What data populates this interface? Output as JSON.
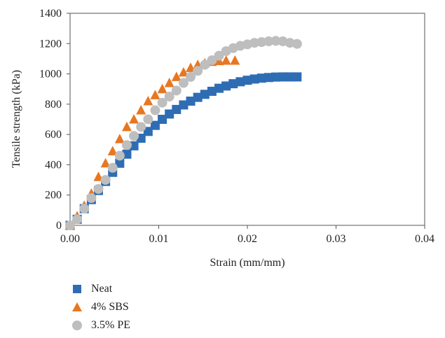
{
  "chart_data": {
    "type": "scatter",
    "title": "",
    "xlabel": "Strain (mm/mm)",
    "ylabel": "Tensile strength (kPa)",
    "xlim": [
      0,
      0.04
    ],
    "ylim": [
      0,
      1400
    ],
    "x_ticks": [
      "0.00",
      "0.01",
      "0.02",
      "0.03",
      "0.04"
    ],
    "y_ticks": [
      "0",
      "200",
      "400",
      "600",
      "800",
      "1000",
      "1200",
      "1400"
    ],
    "grid": false,
    "legend_position": "bottom-left",
    "series": [
      {
        "name": "Neat",
        "marker": "square",
        "color": "#2E6DB4",
        "points": [
          [
            0.0,
            0
          ],
          [
            0.0008,
            40
          ],
          [
            0.0016,
            110
          ],
          [
            0.0024,
            170
          ],
          [
            0.0032,
            230
          ],
          [
            0.004,
            290
          ],
          [
            0.0048,
            350
          ],
          [
            0.0056,
            410
          ],
          [
            0.0064,
            470
          ],
          [
            0.0072,
            525
          ],
          [
            0.008,
            575
          ],
          [
            0.0088,
            620
          ],
          [
            0.0096,
            660
          ],
          [
            0.0104,
            700
          ],
          [
            0.0112,
            735
          ],
          [
            0.012,
            765
          ],
          [
            0.0128,
            795
          ],
          [
            0.0136,
            820
          ],
          [
            0.0144,
            845
          ],
          [
            0.0152,
            865
          ],
          [
            0.016,
            885
          ],
          [
            0.0168,
            905
          ],
          [
            0.0176,
            920
          ],
          [
            0.0184,
            935
          ],
          [
            0.0192,
            948
          ],
          [
            0.02,
            958
          ],
          [
            0.0208,
            966
          ],
          [
            0.0216,
            972
          ],
          [
            0.0224,
            976
          ],
          [
            0.0232,
            979
          ],
          [
            0.024,
            980
          ],
          [
            0.0248,
            980
          ],
          [
            0.0256,
            980
          ]
        ]
      },
      {
        "name": "4% SBS",
        "marker": "triangle",
        "color": "#E87722",
        "points": [
          [
            0.0,
            0
          ],
          [
            0.0008,
            60
          ],
          [
            0.0016,
            130
          ],
          [
            0.0024,
            210
          ],
          [
            0.0032,
            320
          ],
          [
            0.004,
            410
          ],
          [
            0.0048,
            490
          ],
          [
            0.0056,
            570
          ],
          [
            0.0064,
            650
          ],
          [
            0.0072,
            700
          ],
          [
            0.008,
            760
          ],
          [
            0.0088,
            820
          ],
          [
            0.0096,
            860
          ],
          [
            0.0104,
            900
          ],
          [
            0.0112,
            940
          ],
          [
            0.012,
            980
          ],
          [
            0.0128,
            1010
          ],
          [
            0.0136,
            1040
          ],
          [
            0.0144,
            1060
          ],
          [
            0.0152,
            1070
          ],
          [
            0.016,
            1080
          ],
          [
            0.0168,
            1085
          ],
          [
            0.0176,
            1088
          ],
          [
            0.0186,
            1088
          ]
        ]
      },
      {
        "name": "3.5% PE",
        "marker": "circle",
        "color": "#BEBEBE",
        "points": [
          [
            0.0,
            0
          ],
          [
            0.0008,
            40
          ],
          [
            0.0016,
            110
          ],
          [
            0.0024,
            180
          ],
          [
            0.0032,
            240
          ],
          [
            0.004,
            300
          ],
          [
            0.0048,
            380
          ],
          [
            0.0056,
            460
          ],
          [
            0.0064,
            530
          ],
          [
            0.0072,
            590
          ],
          [
            0.008,
            650
          ],
          [
            0.0088,
            700
          ],
          [
            0.0096,
            760
          ],
          [
            0.0104,
            810
          ],
          [
            0.0112,
            850
          ],
          [
            0.012,
            890
          ],
          [
            0.0128,
            940
          ],
          [
            0.0136,
            980
          ],
          [
            0.0144,
            1020
          ],
          [
            0.0152,
            1060
          ],
          [
            0.016,
            1090
          ],
          [
            0.0168,
            1120
          ],
          [
            0.0176,
            1150
          ],
          [
            0.0184,
            1170
          ],
          [
            0.0192,
            1185
          ],
          [
            0.02,
            1195
          ],
          [
            0.0208,
            1205
          ],
          [
            0.0216,
            1210
          ],
          [
            0.0224,
            1215
          ],
          [
            0.0232,
            1218
          ],
          [
            0.024,
            1215
          ],
          [
            0.0248,
            1205
          ],
          [
            0.0256,
            1198
          ]
        ]
      }
    ]
  }
}
